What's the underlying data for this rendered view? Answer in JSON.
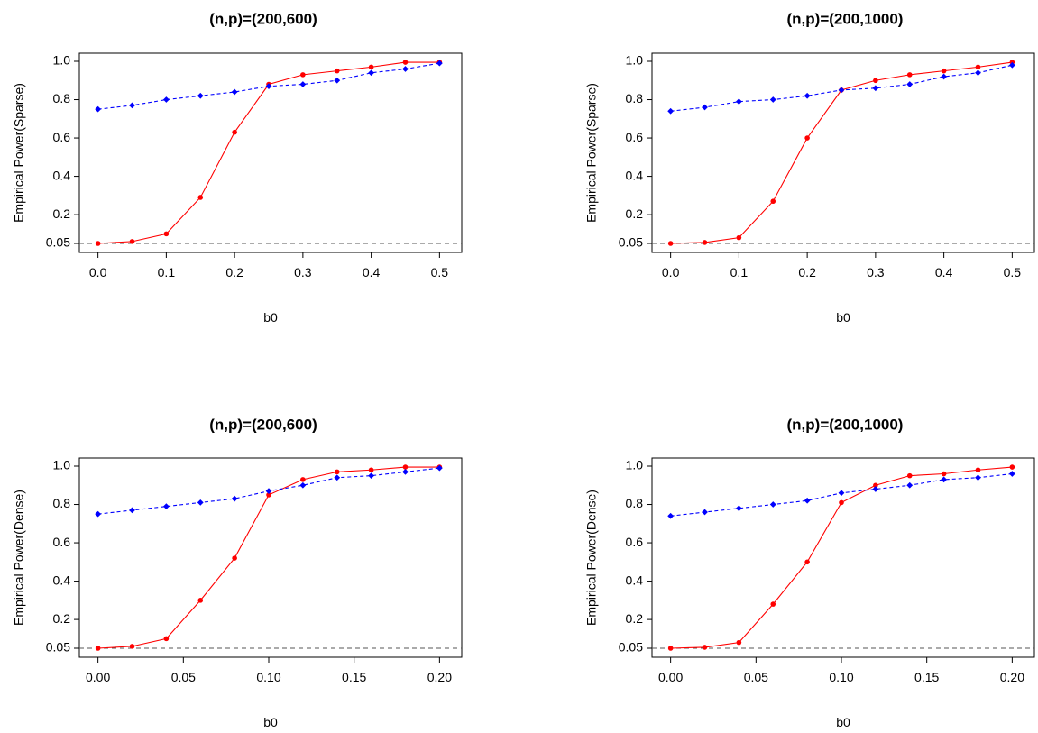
{
  "figure": {
    "colors": {
      "red_series": "#ff0000",
      "blue_series": "#0000ff",
      "reference_line": "#555555",
      "axis": "#000000"
    }
  },
  "chart_data": [
    {
      "type": "line",
      "title": "(n,p)=(200,600)",
      "xlabel": "b0",
      "ylabel": "Empirical Power(Sparse)",
      "xlim": [
        0,
        0.5
      ],
      "ylim": [
        0.05,
        1.0
      ],
      "xticks": [
        "0.0",
        "0.1",
        "0.2",
        "0.3",
        "0.4",
        "0.5"
      ],
      "xtick_values": [
        0,
        0.1,
        0.2,
        0.3,
        0.4,
        0.5
      ],
      "yticks": [
        "0.05",
        "0.2",
        "0.4",
        "0.6",
        "0.8",
        "1.0"
      ],
      "ytick_values": [
        0.05,
        0.2,
        0.4,
        0.6,
        0.8,
        1.0
      ],
      "reference_line": 0.05,
      "x": [
        0,
        0.05,
        0.1,
        0.15,
        0.2,
        0.25,
        0.3,
        0.35,
        0.4,
        0.45,
        0.5
      ],
      "series": [
        {
          "color": "#ff0000",
          "style": "solid",
          "marker": "circle",
          "values": [
            0.05,
            0.06,
            0.1,
            0.29,
            0.63,
            0.88,
            0.93,
            0.95,
            0.97,
            0.995,
            0.995
          ]
        },
        {
          "color": "#0000ff",
          "style": "dashed",
          "marker": "diamond",
          "values": [
            0.75,
            0.77,
            0.8,
            0.82,
            0.84,
            0.87,
            0.88,
            0.9,
            0.94,
            0.96,
            0.99
          ]
        }
      ]
    },
    {
      "type": "line",
      "title": "(n,p)=(200,1000)",
      "xlabel": "b0",
      "ylabel": "Empirical Power(Sparse)",
      "xlim": [
        0,
        0.5
      ],
      "ylim": [
        0.05,
        1.0
      ],
      "xticks": [
        "0.0",
        "0.1",
        "0.2",
        "0.3",
        "0.4",
        "0.5"
      ],
      "xtick_values": [
        0,
        0.1,
        0.2,
        0.3,
        0.4,
        0.5
      ],
      "yticks": [
        "0.05",
        "0.2",
        "0.4",
        "0.6",
        "0.8",
        "1.0"
      ],
      "ytick_values": [
        0.05,
        0.2,
        0.4,
        0.6,
        0.8,
        1.0
      ],
      "reference_line": 0.05,
      "x": [
        0,
        0.05,
        0.1,
        0.15,
        0.2,
        0.25,
        0.3,
        0.35,
        0.4,
        0.45,
        0.5
      ],
      "series": [
        {
          "color": "#ff0000",
          "style": "solid",
          "marker": "circle",
          "values": [
            0.05,
            0.055,
            0.08,
            0.27,
            0.6,
            0.85,
            0.9,
            0.93,
            0.95,
            0.97,
            0.995
          ]
        },
        {
          "color": "#0000ff",
          "style": "dashed",
          "marker": "diamond",
          "values": [
            0.74,
            0.76,
            0.79,
            0.8,
            0.82,
            0.85,
            0.86,
            0.88,
            0.92,
            0.94,
            0.98
          ]
        }
      ]
    },
    {
      "type": "line",
      "title": "(n,p)=(200,600)",
      "xlabel": "b0",
      "ylabel": "Empirical Power(Dense)",
      "xlim": [
        0,
        0.2
      ],
      "ylim": [
        0.05,
        1.0
      ],
      "xticks": [
        "0.00",
        "0.05",
        "0.10",
        "0.15",
        "0.20"
      ],
      "xtick_values": [
        0,
        0.05,
        0.1,
        0.15,
        0.2
      ],
      "yticks": [
        "0.05",
        "0.2",
        "0.4",
        "0.6",
        "0.8",
        "1.0"
      ],
      "ytick_values": [
        0.05,
        0.2,
        0.4,
        0.6,
        0.8,
        1.0
      ],
      "reference_line": 0.05,
      "x": [
        0,
        0.02,
        0.04,
        0.06,
        0.08,
        0.1,
        0.12,
        0.14,
        0.16,
        0.18,
        0.2
      ],
      "series": [
        {
          "color": "#ff0000",
          "style": "solid",
          "marker": "circle",
          "values": [
            0.05,
            0.06,
            0.1,
            0.3,
            0.52,
            0.85,
            0.93,
            0.97,
            0.98,
            0.995,
            0.995
          ]
        },
        {
          "color": "#0000ff",
          "style": "dashed",
          "marker": "diamond",
          "values": [
            0.75,
            0.77,
            0.79,
            0.81,
            0.83,
            0.87,
            0.9,
            0.94,
            0.95,
            0.97,
            0.99
          ]
        }
      ]
    },
    {
      "type": "line",
      "title": "(n,p)=(200,1000)",
      "xlabel": "b0",
      "ylabel": "Empirical Power(Dense)",
      "xlim": [
        0,
        0.2
      ],
      "ylim": [
        0.05,
        1.0
      ],
      "xticks": [
        "0.00",
        "0.05",
        "0.10",
        "0.15",
        "0.20"
      ],
      "xtick_values": [
        0,
        0.05,
        0.1,
        0.15,
        0.2
      ],
      "yticks": [
        "0.05",
        "0.2",
        "0.4",
        "0.6",
        "0.8",
        "1.0"
      ],
      "ytick_values": [
        0.05,
        0.2,
        0.4,
        0.6,
        0.8,
        1.0
      ],
      "reference_line": 0.05,
      "x": [
        0,
        0.02,
        0.04,
        0.06,
        0.08,
        0.1,
        0.12,
        0.14,
        0.16,
        0.18,
        0.2
      ],
      "series": [
        {
          "color": "#ff0000",
          "style": "solid",
          "marker": "circle",
          "values": [
            0.05,
            0.055,
            0.08,
            0.28,
            0.5,
            0.81,
            0.9,
            0.95,
            0.96,
            0.98,
            0.995
          ]
        },
        {
          "color": "#0000ff",
          "style": "dashed",
          "marker": "diamond",
          "values": [
            0.74,
            0.76,
            0.78,
            0.8,
            0.82,
            0.86,
            0.88,
            0.9,
            0.93,
            0.94,
            0.96
          ]
        }
      ]
    }
  ]
}
